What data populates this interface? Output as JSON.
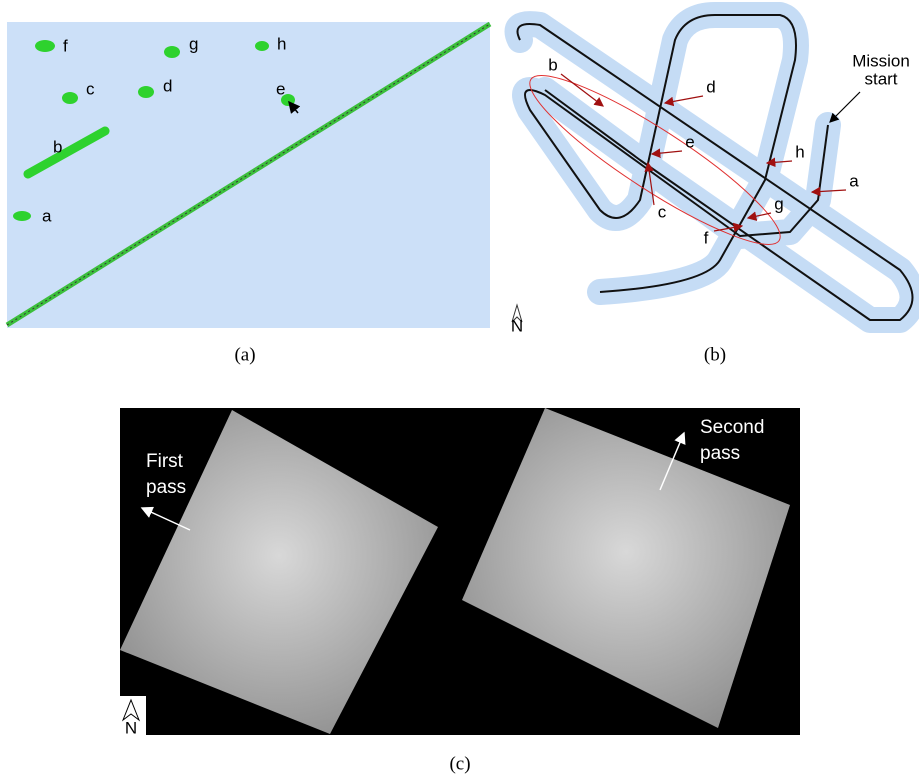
{
  "panels": [
    {
      "caption": "(a)",
      "labels": [
        "f",
        "g",
        "h",
        "c",
        "d",
        "e",
        "b",
        "a"
      ]
    },
    {
      "caption": "(b)",
      "labels": [
        "b",
        "d",
        "e",
        "h",
        "a",
        "g",
        "c",
        "f"
      ],
      "annotation": [
        "Mission",
        "start"
      ],
      "north": "N"
    },
    {
      "caption": "(c)",
      "first": [
        "First",
        "pass"
      ],
      "second": [
        "Second",
        "pass"
      ],
      "north": "N"
    }
  ]
}
